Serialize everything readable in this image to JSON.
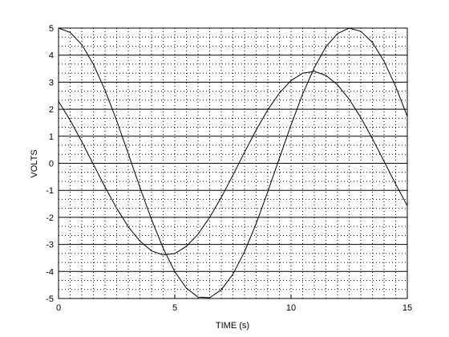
{
  "chart_data": {
    "type": "line",
    "xlabel": "TIME (s)",
    "ylabel": "VOLTS",
    "x": [
      0,
      0.5,
      1,
      1.5,
      2,
      2.5,
      3,
      3.5,
      4,
      4.5,
      5,
      5.5,
      6,
      6.5,
      7,
      7.5,
      8,
      8.5,
      9,
      9.5,
      10,
      10.5,
      11,
      11.5,
      12,
      12.5,
      13,
      13.5,
      14,
      14.5,
      15
    ],
    "series": [
      {
        "color": "#000000",
        "values": [
          5,
          4.84,
          4.39,
          3.66,
          2.7,
          1.58,
          0.35,
          -0.89,
          -2.08,
          -3.14,
          -4.01,
          -4.62,
          -4.95,
          -4.97,
          -4.68,
          -4.1,
          -3.27,
          -2.23,
          -1.05,
          0.19,
          1.42,
          2.56,
          3.54,
          4.31,
          4.8,
          5.0,
          4.88,
          4.47,
          3.77,
          2.84,
          1.73
        ]
      },
      {
        "color": "#000000",
        "values": [
          2.29,
          1.59,
          0.8,
          -0.04,
          -0.88,
          -1.66,
          -2.35,
          -2.88,
          -3.24,
          -3.39,
          -3.34,
          -3.07,
          -2.62,
          -2.0,
          -1.26,
          -0.44,
          0.41,
          1.23,
          1.98,
          2.6,
          3.06,
          3.33,
          3.4,
          3.25,
          2.9,
          2.37,
          1.69,
          0.91,
          0.07,
          -0.77,
          -1.57
        ]
      }
    ],
    "xlim": [
      0,
      15
    ],
    "xticks": [
      0,
      5,
      10,
      15
    ],
    "ylim": [
      -5,
      5
    ],
    "yticks": [
      -5,
      -4,
      -3,
      -2,
      -1,
      0,
      1,
      2,
      3,
      4,
      5
    ],
    "grid": true,
    "minor_grid": true
  }
}
